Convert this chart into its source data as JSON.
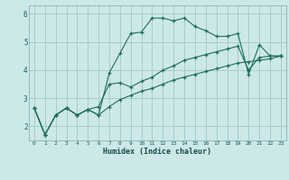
{
  "xlabel": "Humidex (Indice chaleur)",
  "xlim": [
    -0.5,
    23.5
  ],
  "ylim": [
    1.5,
    6.3
  ],
  "yticks": [
    2,
    3,
    4,
    5,
    6
  ],
  "xticks": [
    0,
    1,
    2,
    3,
    4,
    5,
    6,
    7,
    8,
    9,
    10,
    11,
    12,
    13,
    14,
    15,
    16,
    17,
    18,
    19,
    20,
    21,
    22,
    23
  ],
  "background_color": "#cde8e8",
  "grid_color": "#a0c8c8",
  "line_color": "#1e6e5e",
  "line1": [
    2.65,
    1.7,
    2.4,
    2.65,
    2.4,
    2.6,
    2.4,
    3.9,
    4.6,
    5.3,
    5.35,
    5.85,
    5.85,
    5.75,
    5.85,
    5.55,
    5.4,
    5.2,
    5.2,
    5.3,
    3.85,
    4.9,
    4.5,
    4.5
  ],
  "line2": [
    2.65,
    1.7,
    2.4,
    2.65,
    2.4,
    2.6,
    2.7,
    3.5,
    3.55,
    3.4,
    3.6,
    3.75,
    4.0,
    4.15,
    4.35,
    4.45,
    4.55,
    4.65,
    4.75,
    4.85,
    4.0,
    4.45,
    4.5,
    4.5
  ],
  "line3": [
    2.65,
    1.7,
    2.4,
    2.65,
    2.4,
    2.6,
    2.4,
    2.7,
    2.95,
    3.1,
    3.25,
    3.35,
    3.5,
    3.65,
    3.75,
    3.85,
    3.95,
    4.05,
    4.15,
    4.25,
    4.3,
    4.35,
    4.4,
    4.5
  ]
}
